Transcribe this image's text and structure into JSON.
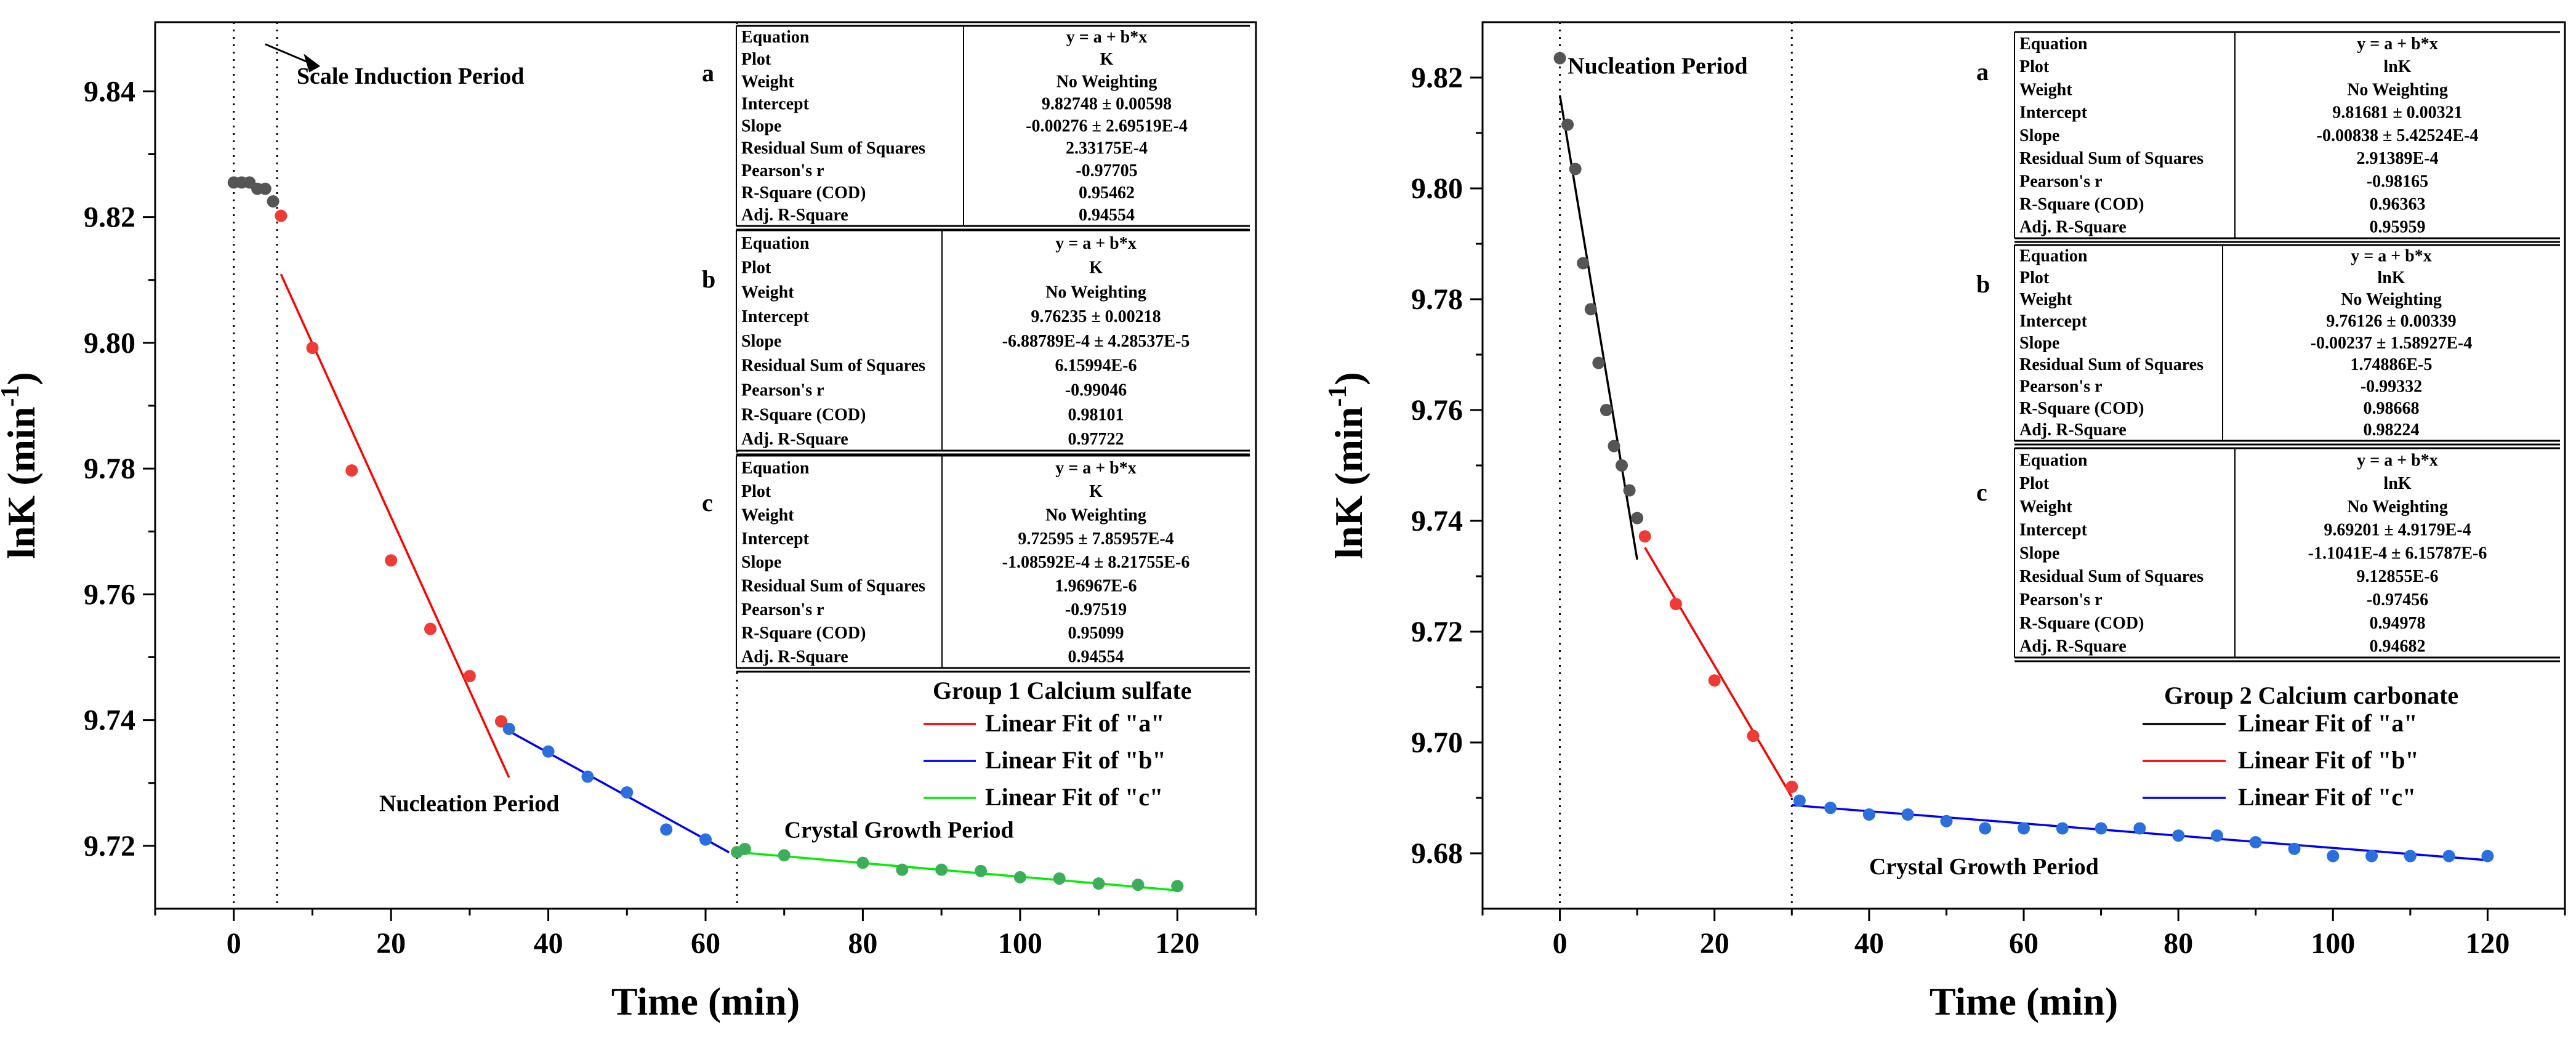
{
  "chart_data": [
    {
      "type": "scatter",
      "xlabel": "Time (min)",
      "ylabel": "lnK (min⁻¹)",
      "ylabel_base": "lnK (min",
      "ylabel_sup": "-1",
      "ylabel_close": ")",
      "xlim": [
        -10,
        130
      ],
      "ylim": [
        9.71,
        9.851
      ],
      "xticks": [
        0,
        20,
        40,
        60,
        80,
        100,
        120
      ],
      "yticks": [
        9.72,
        9.74,
        9.76,
        9.78,
        9.8,
        9.82,
        9.84
      ],
      "ytick_labels": [
        "9.72",
        "9.74",
        "9.76",
        "9.78",
        "9.80",
        "9.82",
        "9.84"
      ],
      "vlines": [
        0,
        5.5,
        64
      ],
      "points": [
        {
          "group": "a",
          "color": "#555555",
          "pts": [
            [
              0,
              9.8255
            ],
            [
              1,
              9.8255
            ],
            [
              2,
              9.8255
            ],
            [
              3,
              9.8245
            ],
            [
              4,
              9.8245
            ],
            [
              5,
              9.8225
            ]
          ]
        },
        {
          "group": "b",
          "color": "#ef3b36",
          "pts": [
            [
              6,
              9.8202
            ],
            [
              10,
              9.7992
            ],
            [
              15,
              9.7797
            ],
            [
              20,
              9.7654
            ],
            [
              25,
              9.7545
            ],
            [
              30,
              9.747
            ],
            [
              34,
              9.7398
            ]
          ]
        },
        {
          "group": "c",
          "color": "#2a6fdb",
          "pts": [
            [
              35,
              9.7386
            ],
            [
              40,
              9.735
            ],
            [
              45,
              9.731
            ],
            [
              50,
              9.7285
            ],
            [
              55,
              9.7226
            ],
            [
              60,
              9.721
            ]
          ]
        },
        {
          "group": "d",
          "color": "#3cae5a",
          "pts": [
            [
              64,
              9.719
            ],
            [
              65,
              9.7195
            ],
            [
              70,
              9.7185
            ],
            [
              80,
              9.7173
            ],
            [
              85,
              9.7162
            ],
            [
              90,
              9.7162
            ],
            [
              95,
              9.716
            ],
            [
              100,
              9.715
            ],
            [
              105,
              9.7148
            ],
            [
              110,
              9.714
            ],
            [
              115,
              9.7138
            ],
            [
              120,
              9.7136
            ]
          ]
        }
      ],
      "fits": [
        {
          "name": "Linear  Fit of \"a\"",
          "color": "#ff0000",
          "x": [
            6,
            35
          ],
          "intercept": 9.82748,
          "slope": -0.00276
        },
        {
          "name": "Linear  Fit of \"b\"",
          "color": "#0000ff",
          "x": [
            35,
            63
          ],
          "intercept": 9.76235,
          "slope": -0.000688789
        },
        {
          "name": "Linear  Fit of \"c\"",
          "color": "#00ee00",
          "x": [
            64,
            120
          ],
          "intercept": 9.72595,
          "slope": -0.000108592
        }
      ],
      "annotations": [
        {
          "text": "Scale Induction Period",
          "x": 8,
          "y": 9.8412
        },
        {
          "text": "Nucleation Period",
          "x": 18.5,
          "y": 9.7255
        },
        {
          "text": "Crystal Growth Period",
          "x": 70,
          "y": 9.7213
        }
      ],
      "legend": {
        "title": "Group 1 Calcium sulfate",
        "placement": "right"
      },
      "tables": [
        {
          "letter": "a",
          "rows": [
            [
              "Equation",
              "y = a + b*x"
            ],
            [
              "Plot",
              "K"
            ],
            [
              "Weight",
              "No Weighting"
            ],
            [
              "Intercept",
              "9.82748 ± 0.00598"
            ],
            [
              "Slope",
              "-0.00276 ± 2.69519E-4"
            ],
            [
              "Residual Sum of Squares",
              "2.33175E-4"
            ],
            [
              "Pearson's r",
              "-0.97705"
            ],
            [
              "R-Square (COD)",
              "0.95462"
            ],
            [
              "Adj. R-Square",
              "0.94554"
            ]
          ]
        },
        {
          "letter": "b",
          "rows": [
            [
              "Equation",
              "y = a + b*x"
            ],
            [
              "Plot",
              "K"
            ],
            [
              "Weight",
              "No Weighting"
            ],
            [
              "Intercept",
              "9.76235 ± 0.00218"
            ],
            [
              "Slope",
              "-6.88789E-4 ± 4.28537E-5"
            ],
            [
              "Residual Sum of Squares",
              "6.15994E-6"
            ],
            [
              "Pearson's r",
              "-0.99046"
            ],
            [
              "R-Square (COD)",
              "0.98101"
            ],
            [
              "Adj. R-Square",
              "0.97722"
            ]
          ]
        },
        {
          "letter": "c",
          "rows": [
            [
              "Equation",
              "y = a + b*x"
            ],
            [
              "Plot",
              "K"
            ],
            [
              "Weight",
              "No Weighting"
            ],
            [
              "Intercept",
              "9.72595 ± 7.85957E-4"
            ],
            [
              "Slope",
              "-1.08592E-4 ± 8.21755E-6"
            ],
            [
              "Residual Sum of Squares",
              "1.96967E-6"
            ],
            [
              "Pearson's r",
              "-0.97519"
            ],
            [
              "R-Square (COD)",
              "0.95099"
            ],
            [
              "Adj. R-Square",
              "0.94554"
            ]
          ]
        }
      ]
    },
    {
      "type": "scatter",
      "xlabel": "Time (min)",
      "ylabel": "lnK (min⁻¹)",
      "ylabel_base": "lnK (min",
      "ylabel_sup": "-1",
      "ylabel_close": ")",
      "xlim": [
        -10,
        130
      ],
      "ylim": [
        9.67,
        9.83
      ],
      "xticks": [
        0,
        20,
        40,
        60,
        80,
        100,
        120
      ],
      "yticks": [
        9.68,
        9.7,
        9.72,
        9.74,
        9.76,
        9.78,
        9.8,
        9.82
      ],
      "ytick_labels": [
        "9.68",
        "9.70",
        "9.72",
        "9.74",
        "9.76",
        "9.78",
        "9.80",
        "9.82"
      ],
      "vlines": [
        0,
        30
      ],
      "points": [
        {
          "group": "a",
          "color": "#555555",
          "pts": [
            [
              0,
              9.8235
            ],
            [
              1,
              9.8115
            ],
            [
              2,
              9.8035
            ],
            [
              3,
              9.7865
            ],
            [
              4,
              9.7782
            ],
            [
              5,
              9.7685
            ],
            [
              6,
              9.76
            ],
            [
              7,
              9.7535
            ],
            [
              8,
              9.75
            ],
            [
              9,
              9.7455
            ],
            [
              10,
              9.7405
            ]
          ]
        },
        {
          "group": "b",
          "color": "#ef3b36",
          "pts": [
            [
              11,
              9.7372
            ],
            [
              15,
              9.725
            ],
            [
              20,
              9.7112
            ],
            [
              25,
              9.7012
            ],
            [
              30,
              9.692
            ]
          ]
        },
        {
          "group": "c",
          "color": "#2a6fdb",
          "pts": [
            [
              31,
              9.6895
            ],
            [
              35,
              9.6882
            ],
            [
              40,
              9.687
            ],
            [
              45,
              9.687
            ],
            [
              50,
              9.6858
            ],
            [
              55,
              9.6845
            ],
            [
              60,
              9.6845
            ],
            [
              65,
              9.6845
            ],
            [
              70,
              9.6845
            ],
            [
              75,
              9.6845
            ],
            [
              80,
              9.6832
            ],
            [
              85,
              9.6832
            ],
            [
              90,
              9.682
            ],
            [
              95,
              9.6808
            ],
            [
              100,
              9.6795
            ],
            [
              105,
              9.6795
            ],
            [
              110,
              9.6795
            ],
            [
              115,
              9.6795
            ],
            [
              120,
              9.6795
            ]
          ]
        }
      ],
      "fits": [
        {
          "name": "Linear Fit of \"a\"",
          "color": "#000000",
          "x": [
            0,
            10
          ],
          "intercept": 9.81681,
          "slope": -0.00838
        },
        {
          "name": "Linear Fit of \"b\"",
          "color": "#ff0000",
          "x": [
            11,
            30
          ],
          "intercept": 9.76126,
          "slope": -0.00237
        },
        {
          "name": "Linear Fit of \"c\"",
          "color": "#0000ff",
          "x": [
            30,
            120
          ],
          "intercept": 9.69201,
          "slope": -0.00011041
        }
      ],
      "annotations": [
        {
          "text": "Nucleation Period",
          "x": 1,
          "y": 9.8207
        },
        {
          "text": "Crystal Growth Period",
          "x": 40,
          "y": 9.6762
        }
      ],
      "legend": {
        "title": "Group 2 Calcium carbonate",
        "placement": "right"
      },
      "tables": [
        {
          "letter": "a",
          "rows": [
            [
              "Equation",
              "y = a + b*x"
            ],
            [
              "Plot",
              "lnK"
            ],
            [
              "Weight",
              "No Weighting"
            ],
            [
              "Intercept",
              "9.81681 ± 0.00321"
            ],
            [
              "Slope",
              "-0.00838 ± 5.42524E-4"
            ],
            [
              "Residual Sum of Squares",
              "2.91389E-4"
            ],
            [
              "Pearson's r",
              "-0.98165"
            ],
            [
              "R-Square (COD)",
              "0.96363"
            ],
            [
              "Adj. R-Square",
              "0.95959"
            ]
          ]
        },
        {
          "letter": "b",
          "rows": [
            [
              "Equation",
              "y = a + b*x"
            ],
            [
              "Plot",
              "lnK"
            ],
            [
              "Weight",
              "No Weighting"
            ],
            [
              "Intercept",
              "9.76126 ± 0.00339"
            ],
            [
              "Slope",
              "-0.00237 ± 1.58927E-4"
            ],
            [
              "Residual Sum of Squares",
              "1.74886E-5"
            ],
            [
              "Pearson's r",
              "-0.99332"
            ],
            [
              "R-Square (COD)",
              "0.98668"
            ],
            [
              "Adj. R-Square",
              "0.98224"
            ]
          ]
        },
        {
          "letter": "c",
          "rows": [
            [
              "Equation",
              "y = a + b*x"
            ],
            [
              "Plot",
              "lnK"
            ],
            [
              "Weight",
              "No Weighting"
            ],
            [
              "Intercept",
              "9.69201 ± 4.9179E-4"
            ],
            [
              "Slope",
              "-1.1041E-4 ± 6.15787E-6"
            ],
            [
              "Residual Sum of Squares",
              "9.12855E-6"
            ],
            [
              "Pearson's r",
              "-0.97456"
            ],
            [
              "R-Square (COD)",
              "0.94978"
            ],
            [
              "Adj. R-Square",
              "0.94682"
            ]
          ]
        }
      ]
    }
  ]
}
